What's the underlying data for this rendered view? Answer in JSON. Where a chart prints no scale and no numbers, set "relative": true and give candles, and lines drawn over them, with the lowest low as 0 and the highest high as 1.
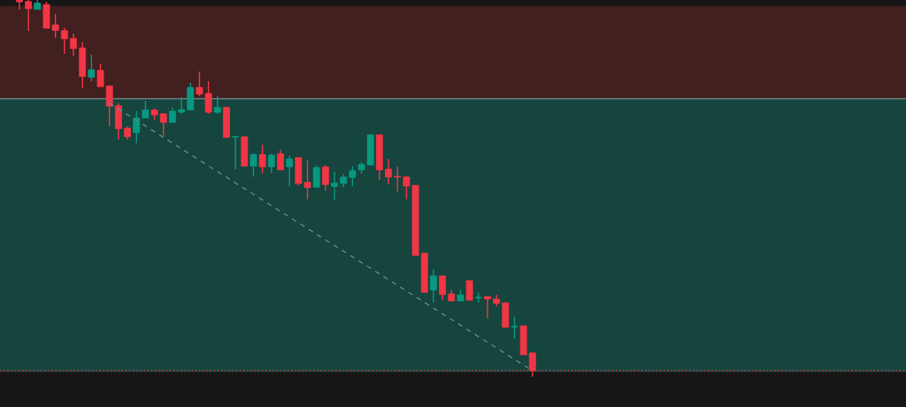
{
  "chart_data": {
    "type": "candlestick",
    "relative": true,
    "categories": [
      null,
      null,
      null,
      null,
      null,
      null,
      null,
      null,
      null,
      null,
      null,
      null,
      null,
      null,
      null,
      null,
      null,
      null,
      null,
      null,
      null,
      null,
      null,
      null,
      null,
      null,
      null,
      null,
      null,
      null,
      null,
      null,
      null,
      null,
      null,
      null,
      null,
      null,
      null,
      null,
      null,
      null,
      null,
      null,
      null,
      null,
      null,
      null,
      null,
      null,
      null,
      null,
      null,
      null,
      null,
      null,
      null,
      null
    ],
    "ohlc": [
      [
        1.0,
        1.0,
        0.975,
        0.995
      ],
      [
        0.996,
        1.0,
        0.918,
        0.977
      ],
      [
        0.975,
        1.0,
        0.975,
        0.992
      ],
      [
        0.988,
        0.995,
        0.925,
        0.925
      ],
      [
        0.934,
        0.963,
        0.9,
        0.919
      ],
      [
        0.919,
        0.927,
        0.857,
        0.897
      ],
      [
        0.898,
        0.911,
        0.851,
        0.871
      ],
      [
        0.873,
        0.888,
        0.766,
        0.797
      ],
      [
        0.795,
        0.855,
        0.784,
        0.815
      ],
      [
        0.813,
        0.831,
        0.77,
        0.77
      ],
      [
        0.772,
        0.773,
        0.665,
        0.718
      ],
      [
        0.719,
        0.726,
        0.63,
        0.658
      ],
      [
        0.66,
        0.665,
        0.63,
        0.637
      ],
      [
        0.648,
        0.705,
        0.62,
        0.687
      ],
      [
        0.687,
        0.733,
        0.686,
        0.708
      ],
      [
        0.708,
        0.712,
        0.682,
        0.695
      ],
      [
        0.698,
        0.7,
        0.639,
        0.675
      ],
      [
        0.675,
        0.714,
        0.675,
        0.705
      ],
      [
        0.702,
        0.742,
        0.698,
        0.709
      ],
      [
        0.708,
        0.78,
        0.708,
        0.768
      ],
      [
        0.768,
        0.81,
        0.745,
        0.75
      ],
      [
        0.752,
        0.784,
        0.698,
        0.702
      ],
      [
        0.702,
        0.745,
        0.698,
        0.715
      ],
      [
        0.715,
        0.716,
        0.634,
        0.635
      ],
      [
        0.636,
        0.637,
        0.55,
        0.637
      ],
      [
        0.637,
        0.637,
        0.559,
        0.559
      ],
      [
        0.559,
        0.593,
        0.531,
        0.59
      ],
      [
        0.59,
        0.616,
        0.541,
        0.557
      ],
      [
        0.557,
        0.592,
        0.541,
        0.588
      ],
      [
        0.592,
        0.602,
        0.549,
        0.549
      ],
      [
        0.557,
        0.586,
        0.506,
        0.578
      ],
      [
        0.582,
        0.582,
        0.508,
        0.513
      ],
      [
        0.516,
        0.574,
        0.471,
        0.502
      ],
      [
        0.503,
        0.561,
        0.503,
        0.555
      ],
      [
        0.557,
        0.562,
        0.494,
        0.51
      ],
      [
        0.505,
        0.545,
        0.469,
        0.514
      ],
      [
        0.513,
        0.538,
        0.503,
        0.53
      ],
      [
        0.529,
        0.559,
        0.506,
        0.547
      ],
      [
        0.549,
        0.569,
        0.539,
        0.564
      ],
      [
        0.562,
        0.644,
        0.562,
        0.642
      ],
      [
        0.642,
        0.642,
        0.522,
        0.549
      ],
      [
        0.551,
        0.578,
        0.51,
        0.53
      ],
      [
        0.531,
        0.557,
        0.492,
        0.53
      ],
      [
        0.53,
        0.534,
        0.471,
        0.506
      ],
      [
        0.508,
        0.508,
        0.322,
        0.322
      ],
      [
        0.328,
        0.328,
        0.224,
        0.224
      ],
      [
        0.23,
        0.285,
        0.197,
        0.268
      ],
      [
        0.268,
        0.268,
        0.203,
        0.218
      ],
      [
        0.22,
        0.231,
        0.201,
        0.201
      ],
      [
        0.201,
        0.231,
        0.201,
        0.217
      ],
      [
        0.255,
        0.255,
        0.203,
        0.203
      ],
      [
        0.209,
        0.223,
        0.197,
        0.21
      ],
      [
        0.213,
        0.213,
        0.155,
        0.206
      ],
      [
        0.206,
        0.217,
        0.187,
        0.195
      ],
      [
        0.196,
        0.198,
        0.131,
        0.131
      ],
      [
        0.132,
        0.159,
        0.1,
        0.133
      ],
      [
        0.135,
        0.135,
        0.058,
        0.058
      ],
      [
        0.063,
        0.064,
        0.0,
        0.016
      ]
    ],
    "colors": [
      "#f23645",
      "#f23645",
      "#089981",
      "#f23645",
      "#f23645",
      "#f23645",
      "#f23645",
      "#f23645",
      "#089981",
      "#f23645",
      "#f23645",
      "#f23645",
      "#f23645",
      "#089981",
      "#089981",
      "#f23645",
      "#f23645",
      "#089981",
      "#089981",
      "#089981",
      "#f23645",
      "#f23645",
      "#089981",
      "#f23645",
      "#089981",
      "#f23645",
      "#089981",
      "#f23645",
      "#089981",
      "#f23645",
      "#089981",
      "#f23645",
      "#f23645",
      "#089981",
      "#f23645",
      "#089981",
      "#089981",
      "#089981",
      "#089981",
      "#089981",
      "#f23645",
      "#f23645",
      "#f23645",
      "#f23645",
      "#f23645",
      "#f23645",
      "#089981",
      "#f23645",
      "#f23645",
      "#089981",
      "#f23645",
      "#089981",
      "#f23645",
      "#f23645",
      "#f23645",
      "#089981",
      "#f23645",
      "#f23645"
    ],
    "series": [
      {
        "type": "line",
        "values": [
          null,
          null,
          null,
          null,
          null,
          null,
          null,
          null,
          null,
          null,
          0.726,
          null,
          null,
          null,
          null,
          null,
          null,
          null,
          null,
          null,
          null,
          null,
          null,
          null,
          null,
          null,
          null,
          null,
          null,
          null,
          null,
          null,
          null,
          null,
          null,
          null,
          null,
          null,
          null,
          null,
          null,
          null,
          null,
          null,
          null,
          null,
          null,
          null,
          null,
          null,
          null,
          null,
          null,
          null,
          null,
          null,
          null,
          0.016
        ],
        "color": "#5f8a7c",
        "line_style": "dashed"
      }
    ],
    "bands": [
      {
        "axis": "y",
        "from": 0.738,
        "to": 0.984,
        "color": "#42201f"
      },
      {
        "axis": "y",
        "from": 0.013,
        "to": 0.738,
        "color": "#16453e"
      }
    ],
    "ref_lines": [
      {
        "axis": "y",
        "value": 0.738,
        "color": "#6b7a77"
      },
      {
        "axis": "y",
        "value": 0.016,
        "color": "#f23645",
        "line_style": "dotted"
      }
    ],
    "legend": false
  }
}
